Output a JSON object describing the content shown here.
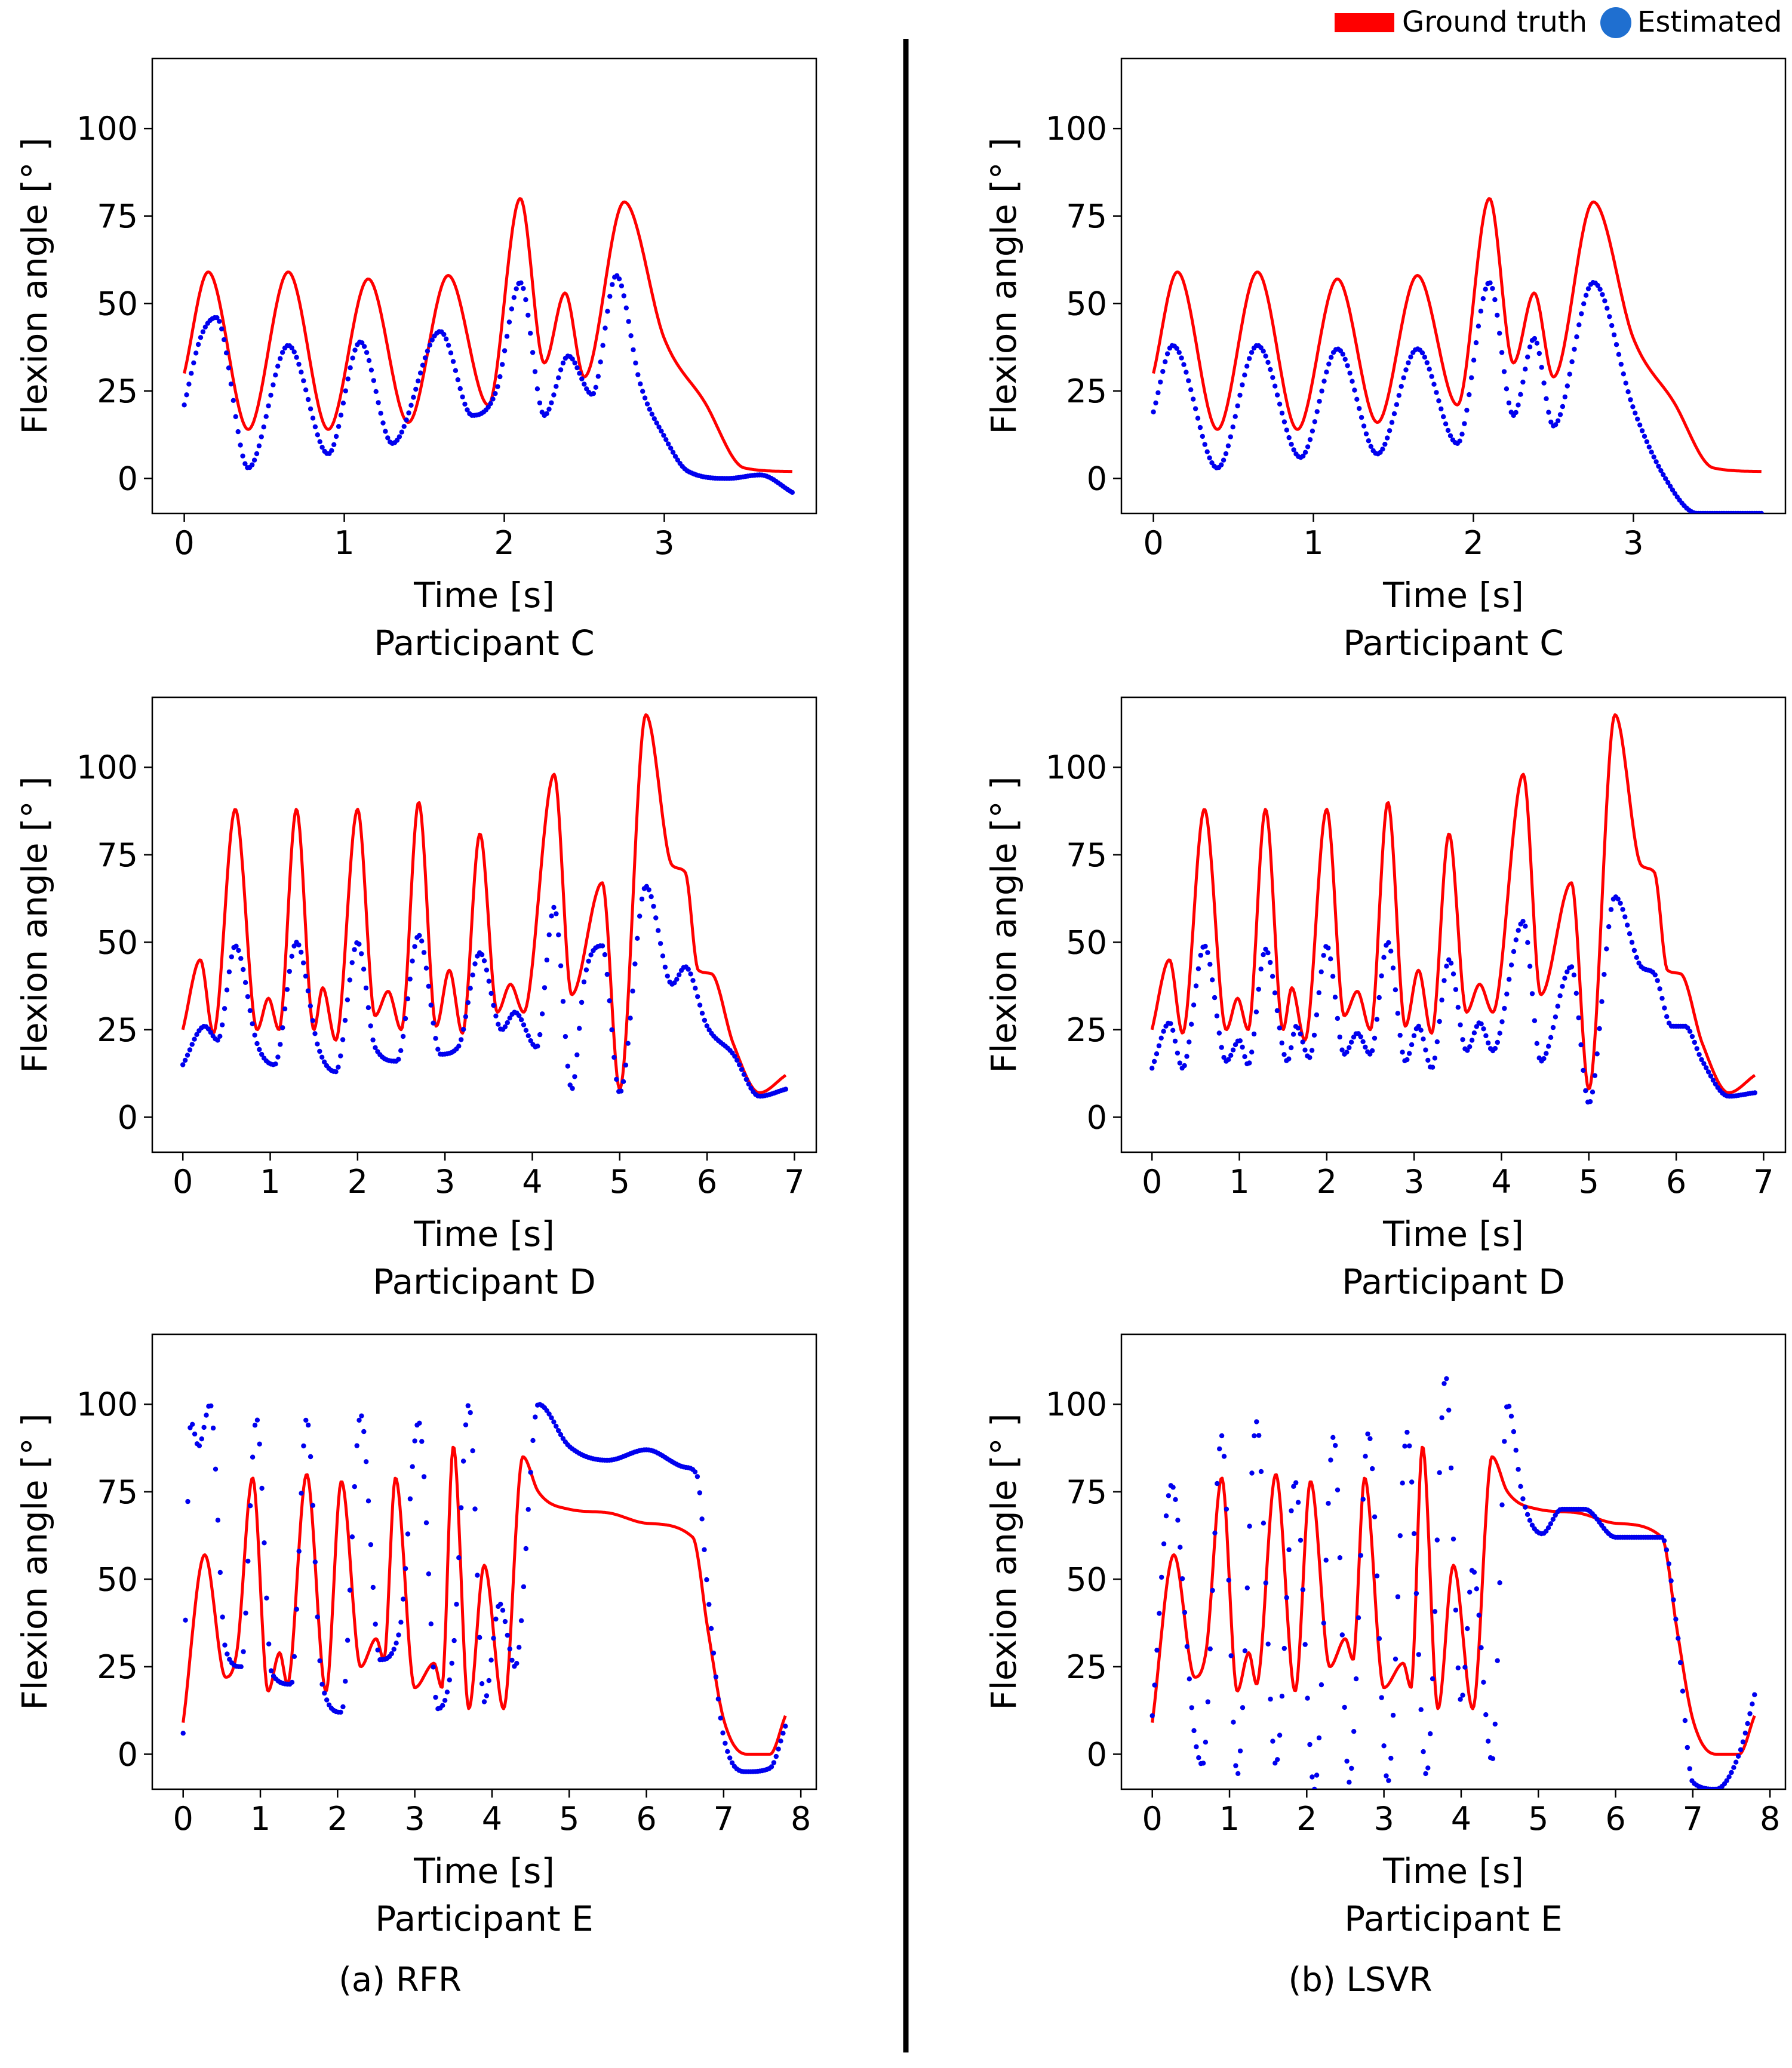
{
  "legend": {
    "items": [
      {
        "label": "Ground truth",
        "color": "#ff0000",
        "shape": "bar"
      },
      {
        "label": "Estimated",
        "color": "#0000ee",
        "shape": "circle",
        "swatch_color": "#1f6fd0"
      }
    ]
  },
  "captions": {
    "left": "(a) RFR",
    "right": "(b) LSVR"
  },
  "chart_data": [
    {
      "type": "line",
      "method": "RFR",
      "title": "Participant C",
      "xlabel": "Time [s]",
      "ylabel": "Flexion angle [° ]",
      "xlim": [
        -0.2,
        3.95
      ],
      "ylim": [
        -10,
        120
      ],
      "xticks": [
        0,
        1,
        2,
        3
      ],
      "yticks": [
        0,
        25,
        50,
        75,
        100
      ],
      "grid": false,
      "series": [
        {
          "name": "Ground truth",
          "style": "line",
          "color": "#ff0000",
          "x": [
            0,
            0.15,
            0.4,
            0.65,
            0.9,
            1.15,
            1.4,
            1.65,
            1.9,
            2.1,
            2.25,
            2.38,
            2.5,
            2.75,
            3.0,
            3.25,
            3.5,
            3.8
          ],
          "y": [
            30,
            59,
            14,
            59,
            14,
            57,
            16,
            58,
            21,
            80,
            33,
            53,
            29,
            79,
            40,
            22,
            3,
            2
          ]
        },
        {
          "name": "Estimated",
          "style": "points",
          "color": "#0000ee",
          "x": [
            0,
            0.1,
            0.2,
            0.4,
            0.65,
            0.9,
            1.1,
            1.3,
            1.6,
            1.8,
            1.95,
            2.1,
            2.25,
            2.4,
            2.55,
            2.7,
            2.85,
            3.0,
            3.15,
            3.4,
            3.6,
            3.8
          ],
          "y": [
            21,
            40,
            46,
            3,
            38,
            7,
            39,
            10,
            42,
            18,
            25,
            56,
            18,
            35,
            24,
            58,
            27,
            12,
            2,
            0,
            1,
            -4
          ]
        }
      ]
    },
    {
      "type": "line",
      "method": "LSVR",
      "title": "Participant C",
      "xlabel": "Time [s]",
      "ylabel": "Flexion angle [° ]",
      "xlim": [
        -0.2,
        3.95
      ],
      "ylim": [
        -10,
        120
      ],
      "xticks": [
        0,
        1,
        2,
        3
      ],
      "yticks": [
        0,
        25,
        50,
        75,
        100
      ],
      "grid": false,
      "series": [
        {
          "name": "Ground truth",
          "style": "line",
          "color": "#ff0000",
          "x": [
            0,
            0.15,
            0.4,
            0.65,
            0.9,
            1.15,
            1.4,
            1.65,
            1.9,
            2.1,
            2.25,
            2.38,
            2.5,
            2.75,
            3.0,
            3.25,
            3.5,
            3.8
          ],
          "y": [
            30,
            59,
            14,
            59,
            14,
            57,
            16,
            58,
            21,
            80,
            33,
            53,
            29,
            79,
            40,
            22,
            3,
            2
          ]
        },
        {
          "name": "Estimated",
          "style": "points",
          "color": "#0000ee",
          "x": [
            0,
            0.12,
            0.4,
            0.65,
            0.92,
            1.15,
            1.4,
            1.65,
            1.9,
            2.1,
            2.25,
            2.38,
            2.5,
            2.75,
            3.0,
            3.2,
            3.4,
            3.6,
            3.8
          ],
          "y": [
            19,
            38,
            3,
            38,
            6,
            37,
            7,
            37,
            10,
            56,
            18,
            40,
            15,
            56,
            20,
            0,
            -10,
            -10,
            -10
          ]
        }
      ]
    },
    {
      "type": "line",
      "method": "RFR",
      "title": "Participant D",
      "xlabel": "Time [s]",
      "ylabel": "Flexion angle [° ]",
      "xlim": [
        -0.35,
        7.25
      ],
      "ylim": [
        -10,
        120
      ],
      "xticks": [
        0,
        1,
        2,
        3,
        4,
        5,
        6,
        7
      ],
      "yticks": [
        0,
        25,
        50,
        75,
        100
      ],
      "grid": false,
      "series": [
        {
          "name": "Ground truth",
          "style": "line",
          "color": "#ff0000",
          "x": [
            0,
            0.2,
            0.35,
            0.6,
            0.85,
            0.98,
            1.1,
            1.3,
            1.5,
            1.6,
            1.75,
            2.0,
            2.2,
            2.35,
            2.5,
            2.7,
            2.9,
            3.05,
            3.2,
            3.4,
            3.6,
            3.75,
            3.9,
            4.25,
            4.45,
            4.8,
            5.0,
            5.3,
            5.6,
            5.75,
            5.9,
            6.05,
            6.3,
            6.6,
            6.9
          ],
          "y": [
            25,
            45,
            24,
            88,
            25,
            34,
            25,
            88,
            25,
            37,
            22,
            88,
            29,
            36,
            25,
            90,
            26,
            42,
            24,
            81,
            30,
            38,
            30,
            98,
            35,
            67,
            8,
            115,
            72,
            70,
            42,
            41,
            21,
            7,
            12
          ]
        },
        {
          "name": "Estimated",
          "style": "points",
          "color": "#0000ee",
          "x": [
            0,
            0.25,
            0.4,
            0.6,
            0.85,
            1.05,
            1.3,
            1.55,
            1.75,
            2.0,
            2.2,
            2.45,
            2.7,
            2.95,
            3.15,
            3.4,
            3.65,
            3.8,
            4.05,
            4.25,
            4.45,
            4.6,
            4.8,
            5.0,
            5.3,
            5.6,
            5.75,
            6.0,
            6.3,
            6.6,
            6.9
          ],
          "y": [
            15,
            26,
            22,
            49,
            21,
            15,
            50,
            20,
            13,
            50,
            20,
            16,
            52,
            18,
            20,
            47,
            25,
            30,
            20,
            60,
            8,
            40,
            49,
            7,
            66,
            38,
            43,
            26,
            18,
            6,
            8
          ]
        }
      ]
    },
    {
      "type": "line",
      "method": "LSVR",
      "title": "Participant D",
      "xlabel": "Time [s]",
      "ylabel": "Flexion angle [° ]",
      "xlim": [
        -0.35,
        7.25
      ],
      "ylim": [
        -10,
        120
      ],
      "xticks": [
        0,
        1,
        2,
        3,
        4,
        5,
        6,
        7
      ],
      "yticks": [
        0,
        25,
        50,
        75,
        100
      ],
      "grid": false,
      "series": [
        {
          "name": "Ground truth",
          "style": "line",
          "color": "#ff0000",
          "x": [
            0,
            0.2,
            0.35,
            0.6,
            0.85,
            0.98,
            1.1,
            1.3,
            1.5,
            1.6,
            1.75,
            2.0,
            2.2,
            2.35,
            2.5,
            2.7,
            2.9,
            3.05,
            3.2,
            3.4,
            3.6,
            3.75,
            3.9,
            4.25,
            4.45,
            4.8,
            5.0,
            5.3,
            5.6,
            5.75,
            5.9,
            6.05,
            6.3,
            6.6,
            6.9
          ],
          "y": [
            25,
            45,
            24,
            88,
            25,
            34,
            25,
            88,
            25,
            37,
            22,
            88,
            29,
            36,
            25,
            90,
            26,
            42,
            24,
            81,
            30,
            38,
            30,
            98,
            35,
            67,
            8,
            115,
            72,
            70,
            42,
            41,
            21,
            7,
            12
          ]
        },
        {
          "name": "Estimated",
          "style": "points",
          "color": "#0000ee",
          "x": [
            0,
            0.2,
            0.35,
            0.6,
            0.85,
            1.0,
            1.1,
            1.3,
            1.55,
            1.65,
            1.8,
            2.0,
            2.2,
            2.35,
            2.5,
            2.7,
            2.9,
            3.05,
            3.2,
            3.4,
            3.6,
            3.75,
            3.9,
            4.25,
            4.45,
            4.8,
            5.0,
            5.3,
            5.6,
            5.75,
            5.95,
            6.1,
            6.3,
            6.6,
            6.9
          ],
          "y": [
            14,
            27,
            14,
            49,
            16,
            22,
            15,
            48,
            16,
            26,
            17,
            49,
            18,
            24,
            18,
            50,
            16,
            26,
            14,
            45,
            19,
            27,
            19,
            56,
            16,
            43,
            4,
            63,
            43,
            41,
            26,
            26,
            16,
            6,
            7
          ]
        }
      ]
    },
    {
      "type": "line",
      "method": "RFR",
      "title": "Participant E",
      "xlabel": "Time [s]",
      "ylabel": "Flexion angle [° ]",
      "xlim": [
        -0.4,
        8.2
      ],
      "ylim": [
        -10,
        120
      ],
      "xticks": [
        0,
        1,
        2,
        3,
        4,
        5,
        6,
        7,
        8
      ],
      "yticks": [
        0,
        25,
        50,
        75,
        100
      ],
      "grid": false,
      "series": [
        {
          "name": "Ground truth",
          "style": "line",
          "color": "#ff0000",
          "x": [
            0,
            0.28,
            0.55,
            0.7,
            0.9,
            1.1,
            1.25,
            1.35,
            1.6,
            1.85,
            2.05,
            2.3,
            2.5,
            2.6,
            2.75,
            3.0,
            3.25,
            3.35,
            3.5,
            3.7,
            3.9,
            4.15,
            4.4,
            4.6,
            5.0,
            5.5,
            6.0,
            6.6,
            6.8,
            7.0,
            7.3,
            7.6,
            7.8
          ],
          "y": [
            9,
            57,
            22,
            30,
            79,
            18,
            29,
            20,
            80,
            18,
            78,
            25,
            33,
            27,
            79,
            19,
            26,
            19,
            88,
            13,
            54,
            13,
            85,
            75,
            70,
            69,
            66,
            62,
            35,
            10,
            0,
            0,
            11
          ]
        },
        {
          "name": "Estimated",
          "style": "points",
          "color": "#0000ee",
          "x": [
            0,
            0.1,
            0.2,
            0.35,
            0.55,
            0.75,
            0.95,
            1.15,
            1.4,
            1.6,
            1.8,
            2.05,
            2.3,
            2.55,
            2.8,
            3.05,
            3.3,
            3.5,
            3.7,
            3.9,
            4.1,
            4.3,
            4.6,
            5.0,
            5.5,
            6.0,
            6.5,
            6.65,
            6.8,
            7.0,
            7.3,
            7.6,
            7.8
          ],
          "y": [
            6,
            95,
            88,
            100,
            30,
            25,
            96,
            23,
            20,
            96,
            20,
            12,
            97,
            27,
            35,
            95,
            13,
            30,
            100,
            15,
            43,
            25,
            100,
            88,
            84,
            87,
            82,
            80,
            45,
            5,
            -5,
            -4,
            8
          ]
        }
      ]
    },
    {
      "type": "line",
      "method": "LSVR",
      "title": "Participant E",
      "xlabel": "Time [s]",
      "ylabel": "Flexion angle [° ]",
      "xlim": [
        -0.4,
        8.2
      ],
      "ylim": [
        -10,
        120
      ],
      "xticks": [
        0,
        1,
        2,
        3,
        4,
        5,
        6,
        7,
        8
      ],
      "yticks": [
        0,
        25,
        50,
        75,
        100
      ],
      "grid": false,
      "series": [
        {
          "name": "Ground truth",
          "style": "line",
          "color": "#ff0000",
          "x": [
            0,
            0.28,
            0.55,
            0.7,
            0.9,
            1.1,
            1.25,
            1.35,
            1.6,
            1.85,
            2.05,
            2.3,
            2.5,
            2.6,
            2.75,
            3.0,
            3.25,
            3.35,
            3.5,
            3.7,
            3.9,
            4.15,
            4.4,
            4.6,
            5.0,
            5.5,
            6.0,
            6.6,
            6.8,
            7.0,
            7.3,
            7.6,
            7.8
          ],
          "y": [
            9,
            57,
            22,
            30,
            79,
            18,
            29,
            20,
            80,
            18,
            78,
            25,
            33,
            27,
            79,
            19,
            26,
            19,
            88,
            13,
            54,
            13,
            85,
            75,
            70,
            69,
            66,
            62,
            35,
            10,
            0,
            0,
            11
          ]
        },
        {
          "name": "Estimated",
          "style": "points",
          "color": "#0000ee",
          "x": [
            0,
            0.25,
            0.55,
            0.65,
            0.9,
            1.1,
            1.35,
            1.6,
            1.85,
            2.1,
            2.35,
            2.55,
            2.8,
            3.05,
            3.3,
            3.55,
            3.8,
            4.0,
            4.15,
            4.4,
            4.6,
            4.8,
            5.05,
            5.3,
            5.6,
            6.0,
            6.6,
            6.8,
            7.0,
            7.3,
            7.6,
            7.8
          ],
          "y": [
            11,
            77,
            5,
            -3,
            91,
            -6,
            95,
            -3,
            78,
            -10,
            91,
            -8,
            92,
            -8,
            92,
            -6,
            108,
            15,
            53,
            -2,
            100,
            73,
            63,
            70,
            70,
            62,
            62,
            35,
            -8,
            -10,
            0,
            17
          ]
        }
      ]
    }
  ]
}
